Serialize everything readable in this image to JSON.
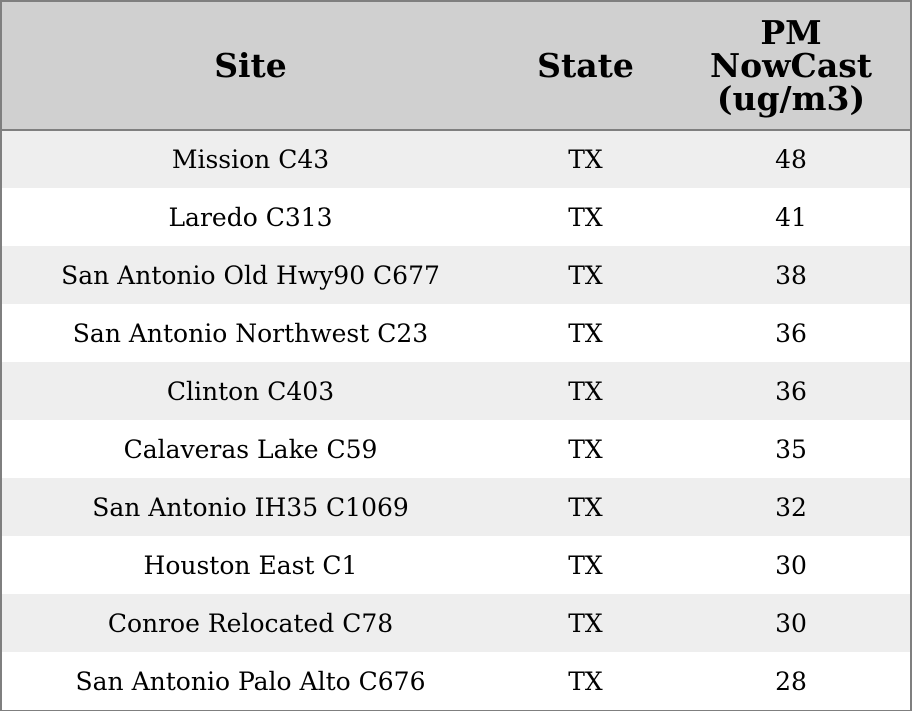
{
  "chart_data": {
    "type": "table",
    "columns": [
      "Site",
      "State",
      "PM NowCast (ug/m3)"
    ],
    "header_lines": {
      "pm": [
        "PM",
        "NowCast",
        "(ug/m3)"
      ]
    },
    "rows": [
      {
        "site": "Mission C43",
        "state": "TX",
        "pm": 48
      },
      {
        "site": "Laredo C313",
        "state": "TX",
        "pm": 41
      },
      {
        "site": "San Antonio Old Hwy90 C677",
        "state": "TX",
        "pm": 38
      },
      {
        "site": "San Antonio Northwest C23",
        "state": "TX",
        "pm": 36
      },
      {
        "site": "Clinton C403",
        "state": "TX",
        "pm": 36
      },
      {
        "site": "Calaveras Lake C59",
        "state": "TX",
        "pm": 35
      },
      {
        "site": "San Antonio IH35 C1069",
        "state": "TX",
        "pm": 32
      },
      {
        "site": "Houston East C1",
        "state": "TX",
        "pm": 30
      },
      {
        "site": "Conroe Relocated C78",
        "state": "TX",
        "pm": 30
      },
      {
        "site": "San Antonio Palo Alto C676",
        "state": "TX",
        "pm": 28
      }
    ]
  },
  "colors": {
    "header_bg": "#d0d0d0",
    "row_alt_bg": "#eeeeee",
    "row_bg": "#ffffff",
    "border": "#7f7f7f"
  }
}
